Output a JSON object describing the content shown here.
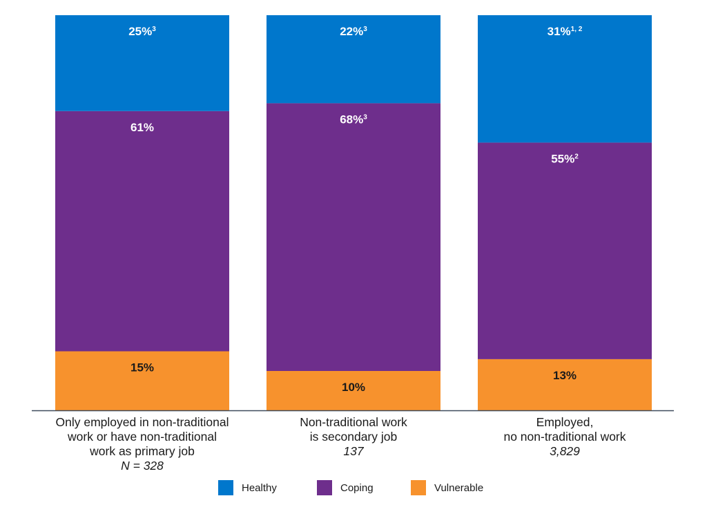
{
  "chart_data": {
    "type": "bar",
    "stacked": true,
    "categories": [
      {
        "lines": [
          "Only employed in non-traditional",
          "work or have non-traditional",
          "work as primary job"
        ],
        "n_label": "N = 328"
      },
      {
        "lines": [
          "Non-traditional work",
          "is secondary job"
        ],
        "n_label": "137"
      },
      {
        "lines": [
          "Employed,",
          "no non-traditional work"
        ],
        "n_label": "3,829"
      }
    ],
    "series": [
      {
        "name": "Vulnerable",
        "color": "#f7922d",
        "text_color": "#1a1a1a",
        "values": [
          15,
          10,
          13
        ],
        "labels": [
          "15%",
          "10%",
          "13%"
        ],
        "sups": [
          "",
          "",
          ""
        ]
      },
      {
        "name": "Coping",
        "color": "#6e2e8c",
        "text_color": "#ffffff",
        "values": [
          61,
          68,
          55
        ],
        "labels": [
          "61%",
          "68%",
          "55%"
        ],
        "sups": [
          "",
          "3",
          "2"
        ]
      },
      {
        "name": "Healthy",
        "color": "#0077cc",
        "text_color": "#ffffff",
        "values": [
          25,
          22,
          31
        ],
        "labels": [
          "25%",
          "22%",
          "31%"
        ],
        "sups": [
          "3",
          "3",
          "1, 2"
        ]
      }
    ],
    "legend_order": [
      "Healthy",
      "Coping",
      "Vulnerable"
    ],
    "legend_position": "bottom",
    "axis_color": "#3d4a5c",
    "grid": false
  }
}
